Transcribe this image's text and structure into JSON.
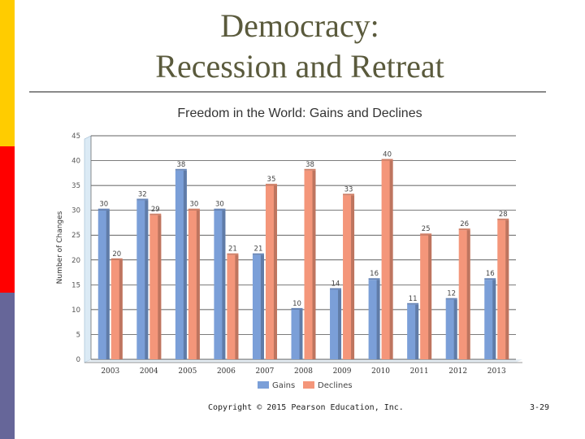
{
  "slide": {
    "title_line1": "Democracy:",
    "title_line2": "Recession and Retreat",
    "copyright": "Copyright © 2015 Pearson Education, Inc.",
    "page": "3-29"
  },
  "colors": {
    "gains": "#7b9fd8",
    "declines": "#f4967a",
    "strip_yellow": "#ffcc00",
    "strip_red": "#ff0000",
    "strip_purple": "#666699"
  },
  "chart_data": {
    "type": "bar",
    "title": "Freedom in the World: Gains and Declines",
    "ylabel": "Number of Changes",
    "xlabel": "",
    "ylim": [
      0,
      45
    ],
    "yticks": [
      0,
      5,
      10,
      15,
      20,
      25,
      30,
      35,
      40,
      45
    ],
    "grid": true,
    "legend": "bottom",
    "categories": [
      "2003",
      "2004",
      "2005",
      "2006",
      "2007",
      "2008",
      "2009",
      "2010",
      "2011",
      "2012",
      "2013"
    ],
    "series": [
      {
        "name": "Gains",
        "values": [
          30,
          32,
          38,
          30,
          21,
          10,
          14,
          16,
          11,
          12,
          16
        ]
      },
      {
        "name": "Declines",
        "values": [
          20,
          29,
          30,
          21,
          35,
          38,
          33,
          40,
          25,
          26,
          28
        ]
      }
    ]
  }
}
